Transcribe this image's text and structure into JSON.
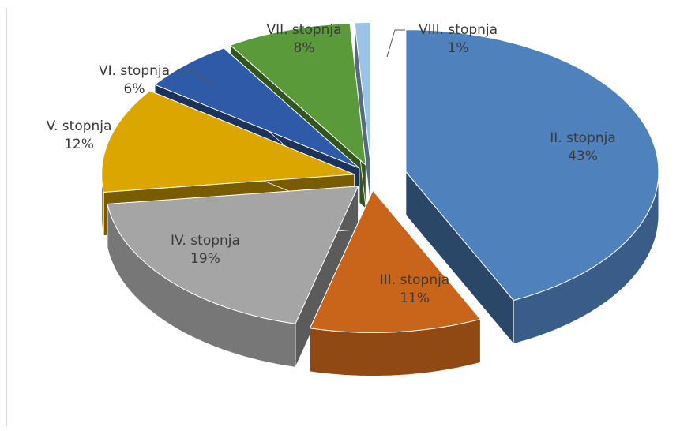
{
  "chart_data": {
    "type": "pie",
    "categories": [
      "II. stopnja",
      "III. stopnja",
      "IV. stopnja",
      "V. stopnja",
      "VI. stopnja",
      "VII. stopnja",
      "VIII. stopnja"
    ],
    "values": [
      43,
      11,
      19,
      12,
      6,
      8,
      1
    ],
    "value_labels": [
      "43%",
      "11%",
      "19%",
      "12%",
      "6%",
      "8%",
      "1%"
    ],
    "colors": [
      "#4f81bd",
      "#c8651b",
      "#a5a5a5",
      "#dca600",
      "#2f5aa8",
      "#5a9a3a",
      "#9cc2e5"
    ]
  }
}
